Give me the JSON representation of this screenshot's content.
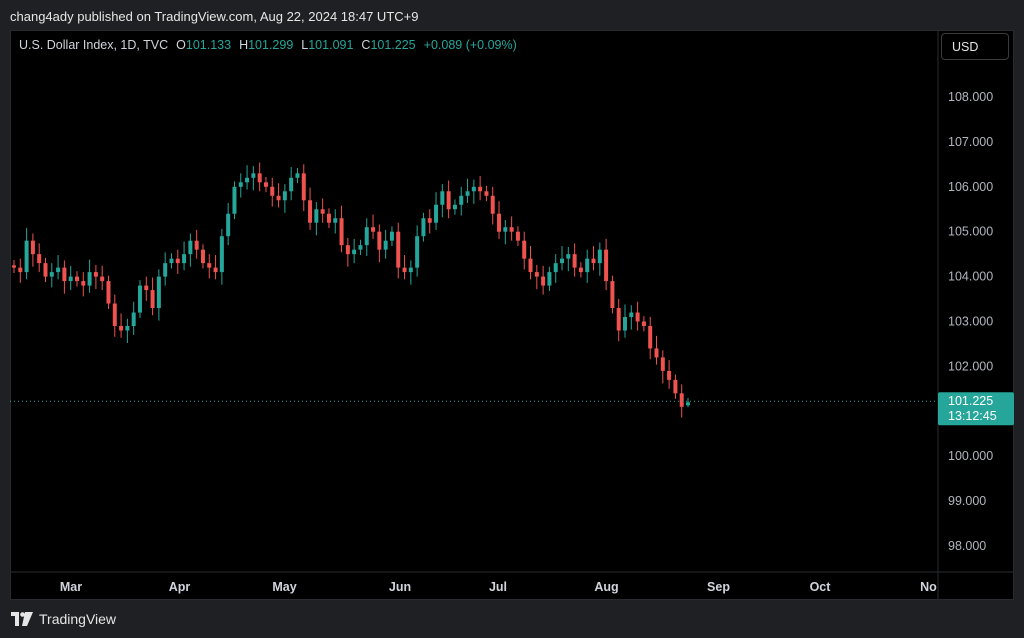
{
  "header": {
    "published": "chang4ady published on TradingView.com, Aug 22, 2024 18:47 UTC+9"
  },
  "legend": {
    "symbol": "U.S. Dollar Index, 1D, TVC",
    "open_label": "O",
    "open": "101.133",
    "high_label": "H",
    "high": "101.299",
    "low_label": "L",
    "low": "101.091",
    "close_label": "C",
    "close": "101.225",
    "change": "+0.089 (+0.09%)"
  },
  "currency_button": "USD",
  "price_tag": {
    "price": "101.225",
    "countdown": "13:12:45"
  },
  "footer": {
    "brand": "TradingView"
  },
  "colors": {
    "up": "#26a69a",
    "down": "#ef5350",
    "background": "#000000"
  },
  "chart_data": {
    "type": "candlestick",
    "title": "U.S. Dollar Index, 1D, TVC",
    "x_ticks": [
      "Mar",
      "Apr",
      "May",
      "Jun",
      "Jul",
      "Aug",
      "Sep",
      "Oct",
      "No"
    ],
    "y_ticks": [
      "98.000",
      "99.000",
      "100.000",
      "101.225",
      "102.000",
      "103.000",
      "104.000",
      "105.000",
      "106.000",
      "107.000",
      "108.000"
    ],
    "ylim": [
      97.5,
      109.2
    ],
    "last_price": 101.225,
    "dates": [
      "2024-02-13",
      "2024-03-01",
      "2024-04-01",
      "2024-05-01",
      "2024-06-03",
      "2024-07-01",
      "2024-08-01",
      "2024-09-02",
      "2024-10-01",
      "2024-11-01"
    ],
    "close_series": [
      104.2,
      104.1,
      104.8,
      104.5,
      104.3,
      104.0,
      104.1,
      104.2,
      103.9,
      104.0,
      103.9,
      103.8,
      104.1,
      104.0,
      103.9,
      103.4,
      102.9,
      102.8,
      102.9,
      103.2,
      103.8,
      103.7,
      103.3,
      104.0,
      104.3,
      104.4,
      104.3,
      104.5,
      104.8,
      104.6,
      104.3,
      104.2,
      104.1,
      104.9,
      105.4,
      106.0,
      106.1,
      106.2,
      106.3,
      106.1,
      106.0,
      105.8,
      105.7,
      105.9,
      106.2,
      106.3,
      105.7,
      105.2,
      105.5,
      105.4,
      105.2,
      105.3,
      104.7,
      104.5,
      104.6,
      104.7,
      105.1,
      105.0,
      104.6,
      104.8,
      105.0,
      104.2,
      104.1,
      104.2,
      104.9,
      105.3,
      105.2,
      105.6,
      105.9,
      105.5,
      105.6,
      105.8,
      105.9,
      106.0,
      105.9,
      105.8,
      105.4,
      105.0,
      105.1,
      105.0,
      104.8,
      104.4,
      104.1,
      104.0,
      103.8,
      104.1,
      104.3,
      104.4,
      104.5,
      104.2,
      104.1,
      104.4,
      104.3,
      104.6,
      103.9,
      103.3,
      102.8,
      103.1,
      103.2,
      103.0,
      102.9,
      102.4,
      102.2,
      101.9,
      101.7,
      101.4,
      101.1,
      101.2
    ]
  }
}
